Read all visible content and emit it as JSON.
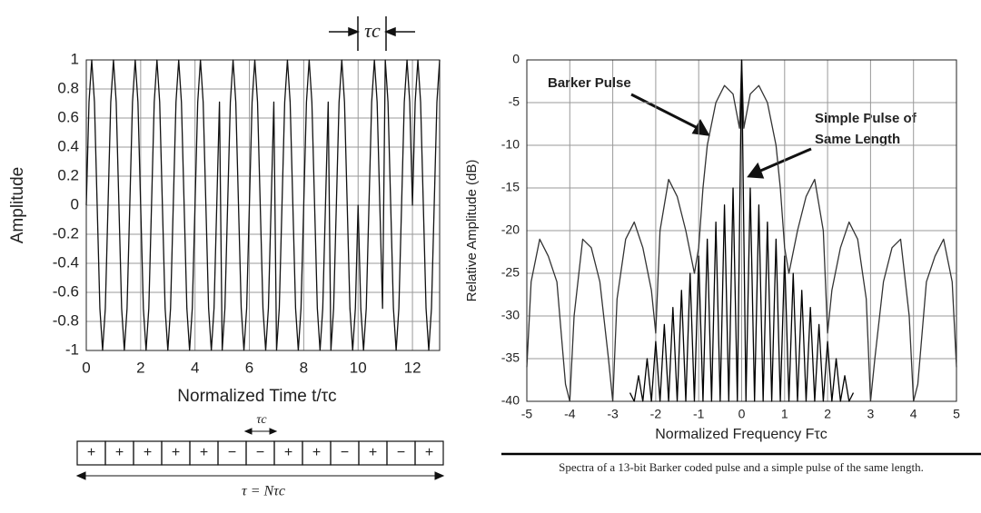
{
  "chart_data": [
    {
      "type": "line",
      "ylabel": "Amplitude",
      "xlabel": "Normalized Time t/τc",
      "annotation": "τc",
      "color": "#111111",
      "grid": true,
      "xlim": [
        0,
        13
      ],
      "xticks": [
        0,
        2,
        4,
        6,
        8,
        10,
        12
      ],
      "ylim": [
        -1,
        1
      ],
      "yticks": [
        -1,
        -0.8,
        -0.6,
        -0.4,
        -0.2,
        0,
        0.2,
        0.4,
        0.6,
        0.8,
        1
      ],
      "x": [
        0,
        0.1,
        0.2,
        0.3,
        0.4,
        0.5,
        0.6,
        0.7,
        0.8,
        0.9,
        1,
        1.1,
        1.2,
        1.3,
        1.4,
        1.5,
        1.6,
        1.7,
        1.8,
        1.9,
        2,
        2.1,
        2.2,
        2.3,
        2.4,
        2.5,
        2.6,
        2.7,
        2.8,
        2.9,
        3,
        3.1,
        3.2,
        3.3,
        3.4,
        3.5,
        3.6,
        3.7,
        3.8,
        3.9,
        4,
        4.1,
        4.2,
        4.3,
        4.4,
        4.5,
        4.6,
        4.7,
        4.8,
        4.9,
        5,
        5.1,
        5.2,
        5.3,
        5.4,
        5.5,
        5.6,
        5.7,
        5.8,
        5.9,
        6,
        6.1,
        6.2,
        6.3,
        6.4,
        6.5,
        6.6,
        6.7,
        6.8,
        6.9,
        7,
        7.1,
        7.2,
        7.3,
        7.4,
        7.5,
        7.6,
        7.7,
        7.8,
        7.9,
        8,
        8.1,
        8.2,
        8.3,
        8.4,
        8.5,
        8.6,
        8.7,
        8.8,
        8.9,
        9,
        9.1,
        9.2,
        9.3,
        9.4,
        9.5,
        9.6,
        9.7,
        9.8,
        9.9,
        10,
        10.1,
        10.2,
        10.3,
        10.4,
        10.5,
        10.6,
        10.7,
        10.8,
        10.9,
        11,
        11.1,
        11.2,
        11.3,
        11.4,
        11.5,
        11.6,
        11.7,
        11.8,
        11.9,
        12,
        12.1,
        12.2,
        12.3,
        12.4,
        12.5,
        12.6,
        12.7,
        12.8,
        12.9,
        13
      ],
      "values": [
        0,
        0.71,
        1,
        0.71,
        0,
        -0.71,
        -1,
        -0.71,
        0,
        0.71,
        1,
        0.71,
        0,
        -0.71,
        -1,
        -0.71,
        0,
        0.71,
        1,
        0.71,
        0,
        -0.71,
        -1,
        -0.71,
        0,
        0.71,
        1,
        0.71,
        0,
        -0.71,
        -1,
        -0.71,
        0,
        0.71,
        1,
        0.71,
        0,
        -0.71,
        -1,
        -0.71,
        0,
        0.71,
        1,
        0.71,
        0,
        -0.71,
        -1,
        -0.71,
        0,
        0.71,
        -1,
        -0.71,
        0,
        0.71,
        1,
        0.71,
        0,
        -0.71,
        -1,
        -0.71,
        0,
        0.71,
        1,
        0.71,
        0,
        -0.71,
        -1,
        -0.71,
        0,
        0.71,
        -1,
        -0.71,
        0,
        0.71,
        1,
        0.71,
        0,
        -0.71,
        -1,
        -0.71,
        0,
        0.71,
        1,
        0.71,
        0,
        -0.71,
        -1,
        -0.71,
        0,
        0.71,
        -1,
        -0.71,
        0,
        0.71,
        1,
        0.71,
        0,
        -0.71,
        -1,
        -0.71,
        0,
        -0.71,
        -1,
        -0.71,
        0,
        0.71,
        1,
        0.71,
        0,
        -0.71,
        1,
        0.71,
        0,
        -0.71,
        -1,
        -0.71,
        0,
        0.71,
        1,
        0.71,
        0,
        0.71,
        1,
        0.71,
        0,
        -0.71,
        -1,
        -0.71,
        0,
        0.71,
        1
      ]
    },
    {
      "type": "line",
      "ylabel": "Relative Amplitude (dB)",
      "xlabel": "Normalized Frequency Fτc",
      "annotations": [
        "Barker Pulse",
        "Simple Pulse of",
        "Same Length"
      ],
      "grid": true,
      "xlim": [
        -5,
        5
      ],
      "xticks": [
        -5,
        -4,
        -3,
        -2,
        -1,
        0,
        1,
        2,
        3,
        4,
        5
      ],
      "ylim": [
        -40,
        0
      ],
      "yticks": [
        0,
        -5,
        -10,
        -15,
        -20,
        -25,
        -30,
        -35,
        -40
      ],
      "series": [
        {
          "color": "#333333",
          "x": [
            -5,
            -4.9,
            -4.7,
            -4.5,
            -4.3,
            -4.1,
            -4,
            -3.9,
            -3.7,
            -3.5,
            -3.3,
            -3.1,
            -3,
            -2.9,
            -2.7,
            -2.5,
            -2.3,
            -2.1,
            -2,
            -1.9,
            -1.7,
            -1.5,
            -1.3,
            -1.1,
            -1,
            -0.9,
            -0.8,
            -0.6,
            -0.4,
            -0.2,
            -0.05,
            0,
            0.05,
            0.2,
            0.4,
            0.6,
            0.8,
            0.9,
            1,
            1.1,
            1.3,
            1.5,
            1.7,
            1.9,
            2,
            2.1,
            2.3,
            2.5,
            2.7,
            2.9,
            3,
            3.1,
            3.3,
            3.5,
            3.7,
            3.9,
            4,
            4.1,
            4.3,
            4.5,
            4.7,
            4.9,
            5
          ],
          "values": [
            -36,
            -26,
            -21,
            -23,
            -26,
            -38,
            -40,
            -30,
            -21,
            -22,
            -26,
            -35,
            -40,
            -28,
            -21,
            -19,
            -22,
            -27,
            -32,
            -20,
            -14,
            -16,
            -20,
            -25,
            -22,
            -15,
            -10,
            -5,
            -3,
            -4,
            -8,
            0,
            -8,
            -4,
            -3,
            -5,
            -10,
            -15,
            -22,
            -25,
            -20,
            -16,
            -14,
            -20,
            -32,
            -27,
            -22,
            -19,
            -21,
            -28,
            -40,
            -35,
            -26,
            -22,
            -21,
            -30,
            -40,
            -38,
            -26,
            -23,
            -21,
            -26,
            -36
          ]
        },
        {
          "color": "#000000",
          "x": [
            -2.6,
            -2.5,
            -2.4,
            -2.3,
            -2.2,
            -2.1,
            -2,
            -1.9,
            -1.8,
            -1.7,
            -1.6,
            -1.5,
            -1.4,
            -1.3,
            -1.2,
            -1.1,
            -1,
            -0.9,
            -0.8,
            -0.7,
            -0.6,
            -0.5,
            -0.4,
            -0.3,
            -0.2,
            -0.1,
            0,
            0.1,
            0.2,
            0.3,
            0.4,
            0.5,
            0.6,
            0.7,
            0.8,
            0.9,
            1,
            1.1,
            1.2,
            1.3,
            1.4,
            1.5,
            1.6,
            1.7,
            1.8,
            1.9,
            2,
            2.1,
            2.2,
            2.3,
            2.4,
            2.5,
            2.6
          ],
          "values": [
            -39,
            -40,
            -37,
            -40,
            -35,
            -40,
            -33,
            -40,
            -31,
            -40,
            -29,
            -40,
            -27,
            -40,
            -25,
            -40,
            -23,
            -40,
            -21,
            -40,
            -19,
            -40,
            -17,
            -40,
            -15,
            -40,
            0,
            -40,
            -15,
            -40,
            -17,
            -40,
            -19,
            -40,
            -21,
            -40,
            -23,
            -40,
            -25,
            -40,
            -27,
            -40,
            -29,
            -40,
            -31,
            -40,
            -33,
            -40,
            -35,
            -40,
            -37,
            -40,
            -39
          ]
        }
      ]
    }
  ],
  "code_diagram": {
    "chip_label": "τc",
    "signs": [
      "+",
      "+",
      "+",
      "+",
      "+",
      "−",
      "−",
      "+",
      "+",
      "−",
      "+",
      "−",
      "+"
    ],
    "length_label": "τ = Nτc"
  },
  "caption": "Spectra of a 13-bit Barker coded pulse and a simple pulse of the same length."
}
